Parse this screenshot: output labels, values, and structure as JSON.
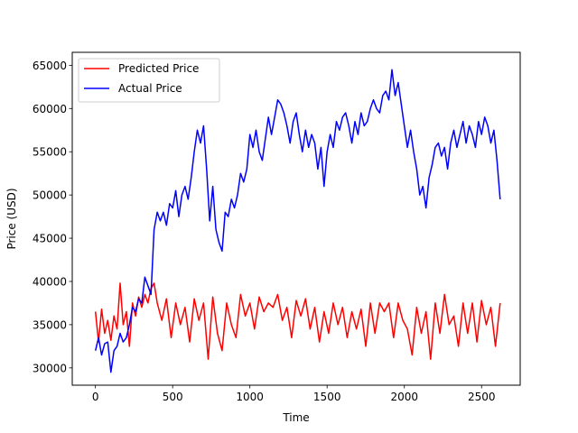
{
  "chart_data": {
    "type": "line",
    "xlabel": "Time",
    "ylabel": "Price (USD)",
    "xlim": [
      -150,
      2750
    ],
    "ylim": [
      28000,
      66500
    ],
    "xticks": [
      0,
      500,
      1000,
      1500,
      2000,
      2500
    ],
    "yticks": [
      30000,
      35000,
      40000,
      45000,
      50000,
      55000,
      60000,
      65000
    ],
    "legend_position": "top-left",
    "series": [
      {
        "name": "Predicted Price",
        "color": "#ff0000",
        "x": [
          0,
          20,
          40,
          60,
          80,
          100,
          120,
          140,
          160,
          180,
          200,
          220,
          240,
          260,
          280,
          300,
          320,
          340,
          360,
          380,
          400,
          430,
          460,
          490,
          520,
          550,
          580,
          610,
          640,
          670,
          700,
          730,
          760,
          790,
          820,
          850,
          880,
          910,
          940,
          970,
          1000,
          1030,
          1060,
          1090,
          1120,
          1150,
          1180,
          1210,
          1240,
          1270,
          1300,
          1330,
          1360,
          1390,
          1420,
          1450,
          1480,
          1510,
          1540,
          1570,
          1600,
          1630,
          1660,
          1690,
          1720,
          1750,
          1780,
          1810,
          1840,
          1870,
          1900,
          1930,
          1960,
          1990,
          2020,
          2050,
          2080,
          2110,
          2140,
          2170,
          2200,
          2230,
          2260,
          2290,
          2320,
          2350,
          2380,
          2410,
          2440,
          2470,
          2500,
          2530,
          2560,
          2590,
          2620
        ],
        "values": [
          36500,
          33000,
          36800,
          34000,
          35500,
          33200,
          36000,
          34500,
          39800,
          35000,
          36500,
          32500,
          37500,
          36000,
          38200,
          37000,
          38500,
          37500,
          39200,
          39800,
          37500,
          35500,
          38000,
          33500,
          37500,
          35000,
          37000,
          33000,
          38000,
          35500,
          37500,
          31000,
          38200,
          34000,
          32000,
          37500,
          35000,
          33500,
          38500,
          36000,
          37500,
          34500,
          38200,
          36500,
          37500,
          37000,
          38500,
          35500,
          37000,
          33500,
          37800,
          36000,
          38000,
          34500,
          37000,
          33000,
          36500,
          34000,
          37500,
          35000,
          37000,
          33500,
          36500,
          34500,
          36800,
          32500,
          37500,
          34000,
          37500,
          36500,
          37500,
          33500,
          37500,
          35500,
          34500,
          31500,
          37000,
          34000,
          36500,
          31000,
          37500,
          34000,
          38500,
          35000,
          36000,
          32500,
          37500,
          34000,
          37500,
          33000,
          37800,
          35000,
          37000,
          32500,
          37500
        ]
      },
      {
        "name": "Actual Price",
        "color": "#0000ff",
        "x": [
          0,
          20,
          40,
          60,
          80,
          100,
          120,
          140,
          160,
          180,
          200,
          220,
          240,
          260,
          280,
          300,
          320,
          340,
          360,
          380,
          400,
          420,
          440,
          460,
          480,
          500,
          520,
          540,
          560,
          580,
          600,
          620,
          640,
          660,
          680,
          700,
          720,
          740,
          760,
          780,
          800,
          820,
          840,
          860,
          880,
          900,
          920,
          940,
          960,
          980,
          1000,
          1020,
          1040,
          1060,
          1080,
          1100,
          1120,
          1140,
          1160,
          1180,
          1200,
          1220,
          1240,
          1260,
          1280,
          1300,
          1320,
          1340,
          1360,
          1380,
          1400,
          1420,
          1440,
          1460,
          1480,
          1500,
          1520,
          1540,
          1560,
          1580,
          1600,
          1620,
          1640,
          1660,
          1680,
          1700,
          1720,
          1740,
          1760,
          1780,
          1800,
          1820,
          1840,
          1860,
          1880,
          1900,
          1920,
          1940,
          1960,
          1980,
          2000,
          2020,
          2040,
          2060,
          2080,
          2100,
          2120,
          2140,
          2160,
          2180,
          2200,
          2220,
          2240,
          2260,
          2280,
          2300,
          2320,
          2340,
          2360,
          2380,
          2400,
          2420,
          2440,
          2460,
          2480,
          2500,
          2520,
          2540,
          2560,
          2580,
          2600,
          2620
        ],
        "values": [
          32000,
          33500,
          31500,
          32800,
          33000,
          29500,
          32000,
          32500,
          34000,
          33000,
          33500,
          35000,
          37000,
          36500,
          38000,
          37500,
          40500,
          39500,
          38500,
          46000,
          48000,
          47000,
          48000,
          46500,
          49000,
          48500,
          50500,
          47500,
          50000,
          51000,
          49500,
          52000,
          55000,
          57500,
          56000,
          58000,
          53000,
          47000,
          51000,
          46000,
          44500,
          43500,
          48000,
          47500,
          49500,
          48500,
          50000,
          52500,
          51500,
          53000,
          57000,
          55500,
          57500,
          55000,
          54000,
          56500,
          59000,
          57000,
          59000,
          61000,
          60500,
          59500,
          58000,
          56000,
          58500,
          59500,
          57000,
          55000,
          57500,
          55500,
          57000,
          56000,
          53000,
          55500,
          51000,
          55000,
          57000,
          55500,
          58500,
          57500,
          59000,
          59500,
          58000,
          56000,
          58500,
          57000,
          59500,
          58000,
          58500,
          60000,
          61000,
          60000,
          59500,
          61500,
          62000,
          61000,
          64500,
          61500,
          63000,
          60500,
          58000,
          55500,
          57500,
          55000,
          53000,
          50000,
          51000,
          48500,
          52000,
          53500,
          55500,
          56000,
          54500,
          55500,
          53000,
          56000,
          57500,
          55500,
          57000,
          58500,
          56000,
          58000,
          57000,
          55500,
          58500,
          57000,
          59000,
          58000,
          56000,
          57500,
          54000,
          49500
        ]
      }
    ]
  }
}
